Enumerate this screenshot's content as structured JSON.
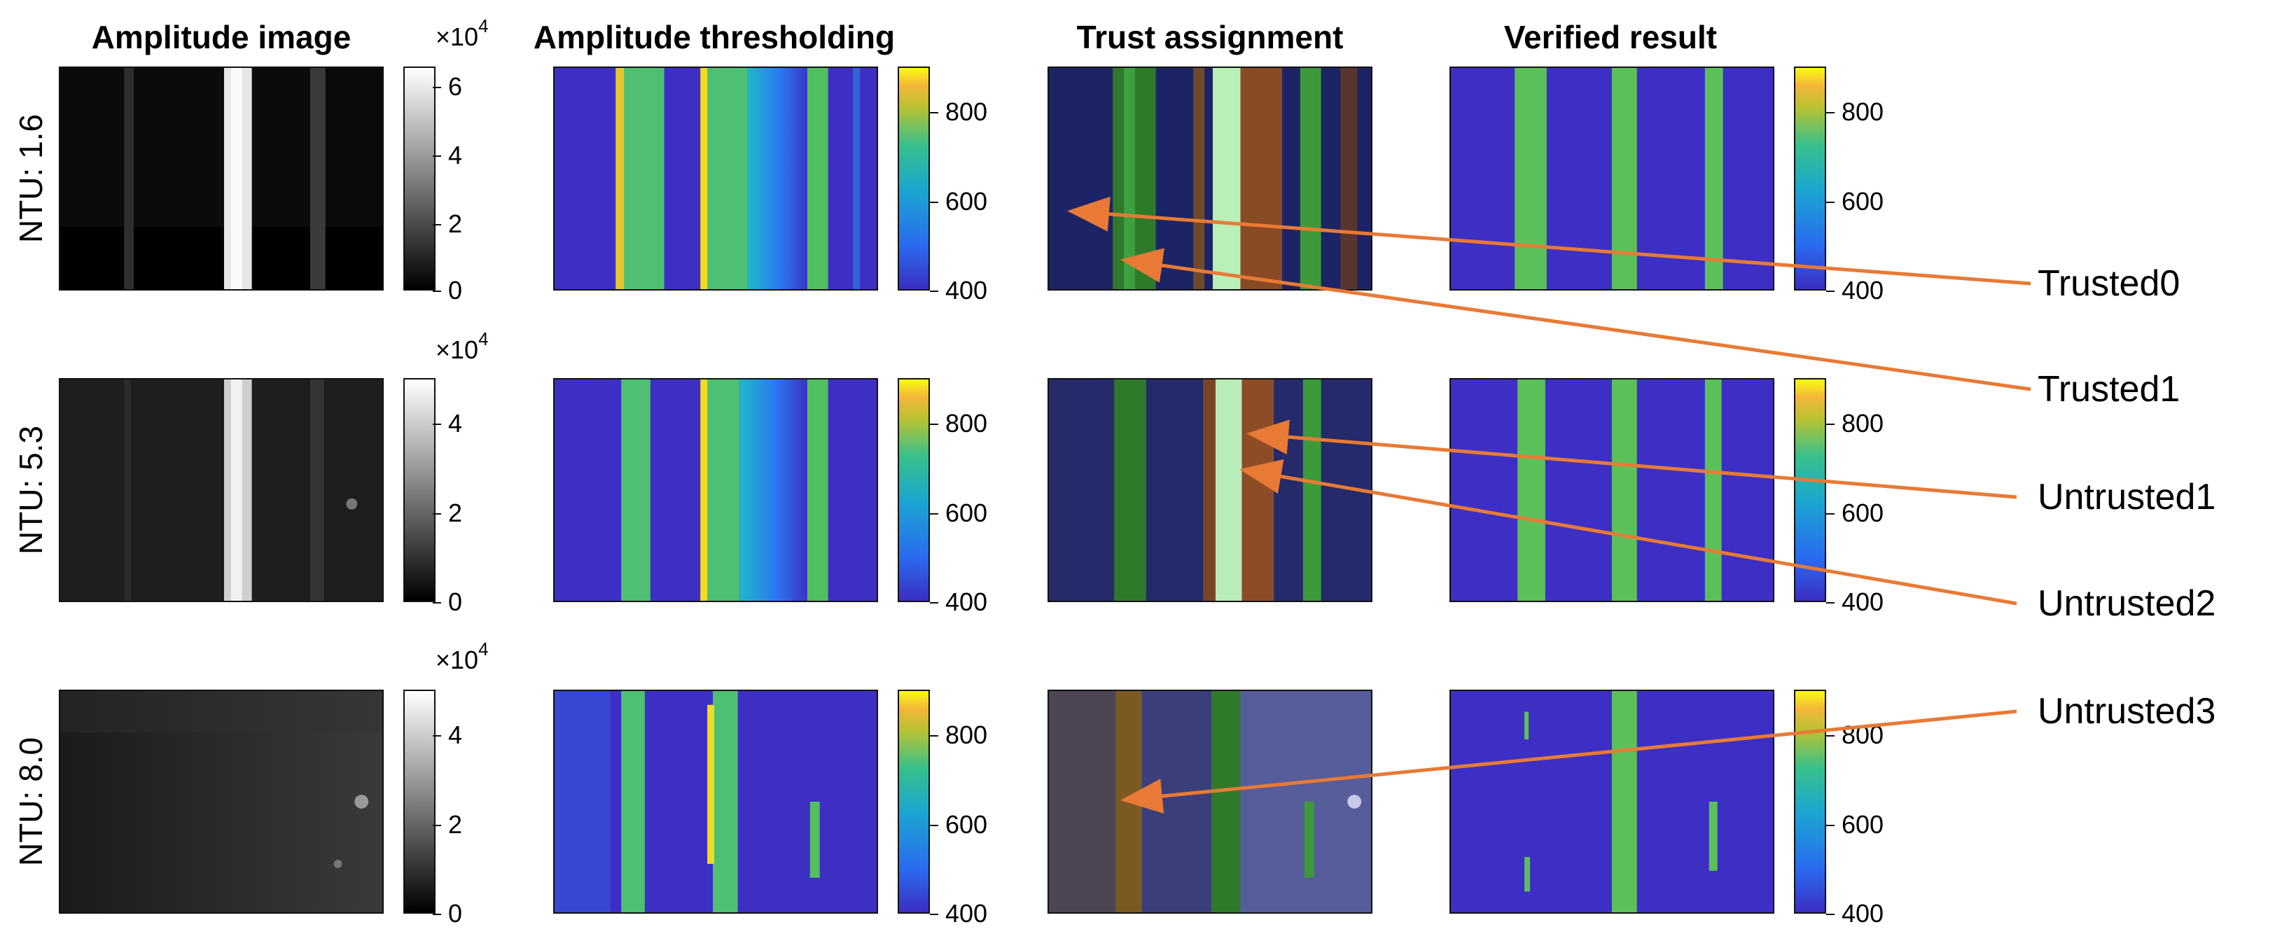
{
  "column_titles": [
    "Amplitude image",
    "Amplitude thresholding",
    "Trust assignment",
    "Verified result"
  ],
  "rows": [
    {
      "label": "NTU: 1.6",
      "amp_ticks": [
        "6",
        "4",
        "2",
        "0"
      ],
      "amp_exponent_base": "×10",
      "amp_exponent_power": "4"
    },
    {
      "label": "NTU: 5.3",
      "amp_ticks": [
        "4",
        "2",
        "0"
      ],
      "amp_exponent_base": "×10",
      "amp_exponent_power": "4"
    },
    {
      "label": "NTU: 8.0",
      "amp_ticks": [
        "4",
        "2",
        "0"
      ],
      "amp_exponent_base": "×10",
      "amp_exponent_power": "4"
    }
  ],
  "colorbar_ticks": [
    "800",
    "600",
    "400"
  ],
  "callouts": [
    "Trusted0",
    "Trusted1",
    "Untrusted1",
    "Untrusted2",
    "Untrusted3"
  ],
  "colors": {
    "arrow": "#e87a35",
    "parula_low": "#3d2fc4",
    "parula_mid": "#22b0a8",
    "parula_high": "#f9fb14",
    "stripe_green": "#52c05e",
    "trusted_green": "#2f8a2a",
    "untrusted_brown": "#8a4a24"
  }
}
